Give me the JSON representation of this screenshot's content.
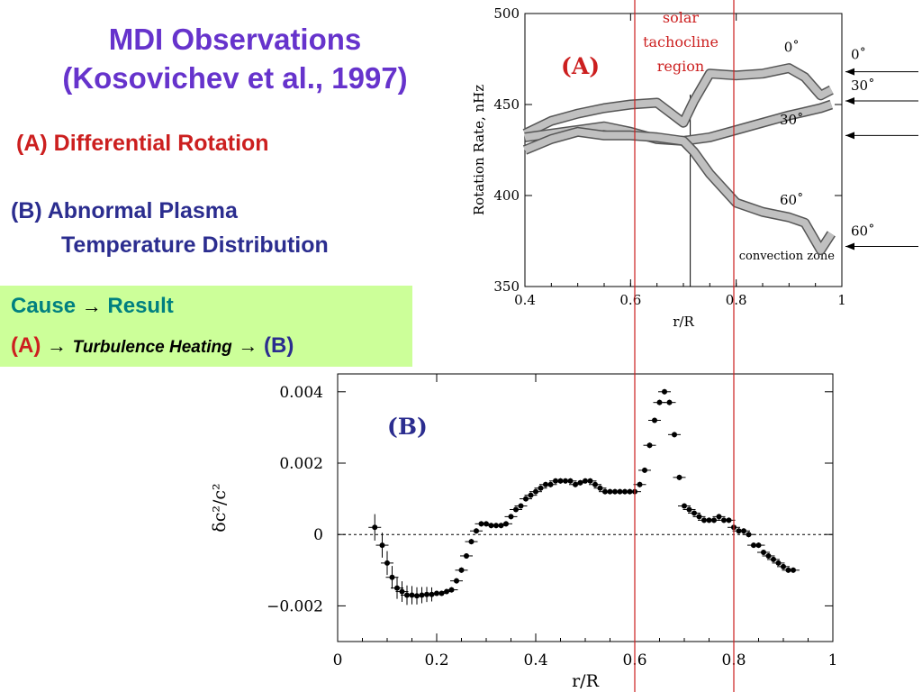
{
  "slide": {
    "title_line1": "MDI Observations",
    "title_line2": "(Kosovichev et al., 1997)",
    "item_a_prefix": "(A)",
    "item_a_label": "Differential Rotation",
    "item_b_line1": "(B) Abnormal Plasma",
    "item_b_line2": "Temperature Distribution",
    "cause": "Cause",
    "result": "Result",
    "arrow": "→",
    "chain_a": "(A)",
    "chain_mid": "Turbulence Heating",
    "chain_b": "(B)"
  },
  "colors": {
    "purple": "#6633cc",
    "red": "#cc1f1f",
    "navy": "#2b2d8f",
    "teal": "#008080",
    "box": "#ccff99",
    "band": "#c0c0c0"
  },
  "annotation": {
    "line1": "solar",
    "line2": "tachocline",
    "line3": "region",
    "marker_x": [
      0.6,
      0.8
    ]
  },
  "chart_data": [
    {
      "type": "line",
      "panel_label": "(A)",
      "xlabel": "r/R",
      "ylabel": "Rotation Rate, nHz",
      "xlim": [
        0.4,
        1.0
      ],
      "ylim": [
        350,
        500
      ],
      "x_ticks": [
        "0.4",
        "0.6",
        "0.8",
        "1"
      ],
      "y_ticks": [
        "350",
        "400",
        "450",
        "500"
      ],
      "convection_zone_boundary": 0.713,
      "convection_zone_label": "convection zone",
      "right_arrow_labels": [
        "0˚",
        "30˚",
        "60˚"
      ],
      "series": [
        {
          "name": "0˚",
          "x": [
            0.4,
            0.45,
            0.5,
            0.55,
            0.6,
            0.65,
            0.7,
            0.72,
            0.75,
            0.8,
            0.85,
            0.9,
            0.93,
            0.96,
            0.98
          ],
          "y": [
            434,
            441,
            445,
            448,
            450,
            451,
            440,
            452,
            467,
            466,
            467,
            470,
            465,
            455,
            458
          ]
        },
        {
          "name": "30˚",
          "x": [
            0.4,
            0.45,
            0.5,
            0.55,
            0.6,
            0.65,
            0.7,
            0.75,
            0.8,
            0.85,
            0.9,
            0.93,
            0.96,
            0.98
          ],
          "y": [
            432,
            434,
            436,
            438,
            435,
            431,
            430,
            432,
            436,
            440,
            444,
            446,
            448,
            450
          ]
        },
        {
          "name": "60˚",
          "x": [
            0.4,
            0.45,
            0.5,
            0.55,
            0.6,
            0.65,
            0.7,
            0.72,
            0.75,
            0.8,
            0.85,
            0.9,
            0.93,
            0.96,
            0.98
          ],
          "y": [
            425,
            431,
            435,
            433,
            433,
            432,
            430,
            424,
            412,
            396,
            391,
            388,
            385,
            370,
            379
          ]
        }
      ]
    },
    {
      "type": "scatter",
      "panel_label": "(B)",
      "xlabel": "r/R",
      "ylabel": "δc²/c²",
      "xlim": [
        0,
        1
      ],
      "ylim": [
        -0.003,
        0.0045
      ],
      "x_ticks": [
        "0",
        "0.2",
        "0.4",
        "0.6",
        "0.8",
        "1"
      ],
      "y_ticks": [
        "−0.002",
        "0",
        "0.002",
        "0.004"
      ],
      "x": [
        0.075,
        0.09,
        0.1,
        0.11,
        0.12,
        0.13,
        0.14,
        0.15,
        0.16,
        0.17,
        0.18,
        0.19,
        0.2,
        0.21,
        0.22,
        0.23,
        0.24,
        0.25,
        0.26,
        0.27,
        0.28,
        0.29,
        0.3,
        0.31,
        0.32,
        0.33,
        0.34,
        0.35,
        0.36,
        0.37,
        0.38,
        0.39,
        0.4,
        0.41,
        0.42,
        0.43,
        0.44,
        0.45,
        0.46,
        0.47,
        0.48,
        0.49,
        0.5,
        0.51,
        0.52,
        0.53,
        0.54,
        0.55,
        0.56,
        0.57,
        0.58,
        0.59,
        0.6,
        0.61,
        0.62,
        0.63,
        0.64,
        0.65,
        0.66,
        0.67,
        0.68,
        0.69,
        0.7,
        0.71,
        0.72,
        0.73,
        0.74,
        0.75,
        0.76,
        0.77,
        0.78,
        0.79,
        0.8,
        0.81,
        0.82,
        0.83,
        0.84,
        0.85,
        0.86,
        0.87,
        0.88,
        0.89,
        0.9,
        0.91,
        0.92
      ],
      "y": [
        0.0002,
        -0.0003,
        -0.0008,
        -0.0012,
        -0.0015,
        -0.0016,
        -0.0017,
        -0.0017,
        -0.00172,
        -0.0017,
        -0.00168,
        -0.00168,
        -0.00165,
        -0.00165,
        -0.0016,
        -0.00155,
        -0.0013,
        -0.001,
        -0.0006,
        -0.0002,
        0.0001,
        0.0003,
        0.0003,
        0.00025,
        0.00025,
        0.00025,
        0.0003,
        0.0005,
        0.0007,
        0.0008,
        0.001,
        0.0011,
        0.0012,
        0.0013,
        0.0014,
        0.0014,
        0.0015,
        0.0015,
        0.0015,
        0.0015,
        0.0014,
        0.00145,
        0.0015,
        0.0015,
        0.0014,
        0.0013,
        0.0012,
        0.0012,
        0.0012,
        0.0012,
        0.0012,
        0.0012,
        0.0012,
        0.0014,
        0.0018,
        0.0025,
        0.0032,
        0.0037,
        0.004,
        0.0037,
        0.0028,
        0.0016,
        0.0008,
        0.0007,
        0.0006,
        0.0005,
        0.0004,
        0.0004,
        0.0004,
        0.0005,
        0.0004,
        0.0004,
        0.0002,
        0.0001,
        0.0001,
        0.0,
        -0.0003,
        -0.0003,
        -0.0005,
        -0.0006,
        -0.0007,
        -0.0008,
        -0.0009,
        -0.001,
        -0.001
      ]
    }
  ]
}
